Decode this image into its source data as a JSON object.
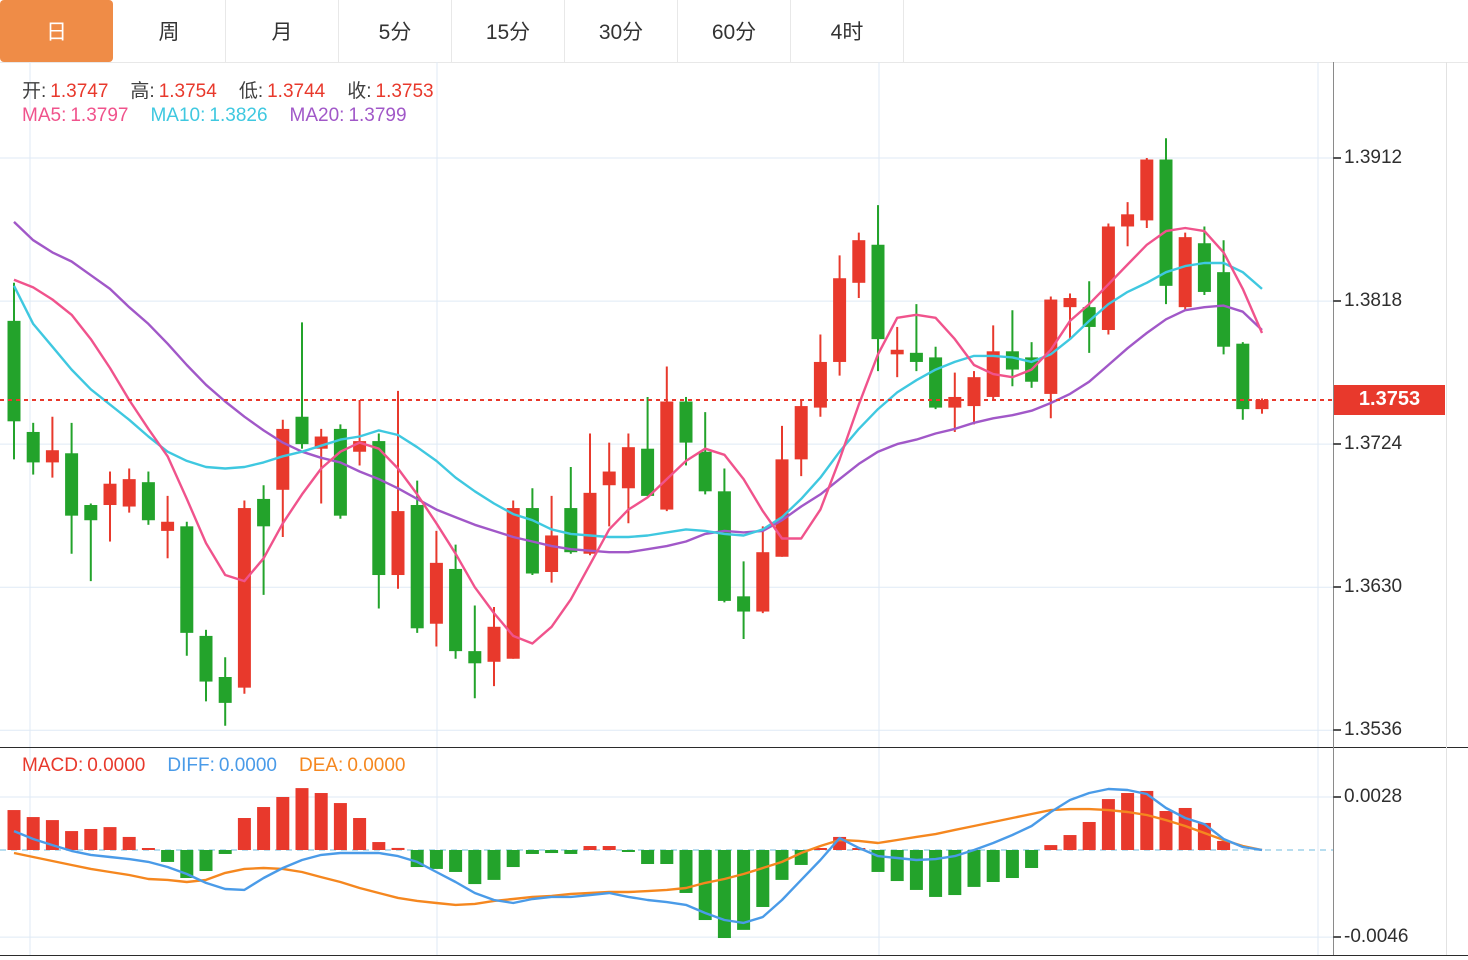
{
  "tabs": [
    {
      "label": "日",
      "active": true
    },
    {
      "label": "周",
      "active": false
    },
    {
      "label": "月",
      "active": false
    },
    {
      "label": "5分",
      "active": false
    },
    {
      "label": "15分",
      "active": false
    },
    {
      "label": "30分",
      "active": false
    },
    {
      "label": "60分",
      "active": false
    },
    {
      "label": "4时",
      "active": false
    }
  ],
  "price_tag": "1.3753",
  "legend": {
    "ohlc": [
      {
        "label": "开:",
        "value": "1.3747"
      },
      {
        "label": "高:",
        "value": "1.3754"
      },
      {
        "label": "低:",
        "value": "1.3744"
      },
      {
        "label": "收:",
        "value": "1.3753"
      }
    ],
    "ma": [
      {
        "label": "MA5:",
        "value": "1.3797",
        "color": "#f0538c"
      },
      {
        "label": "MA10:",
        "value": "1.3826",
        "color": "#3fc8e0"
      },
      {
        "label": "MA20:",
        "value": "1.3799",
        "color": "#a158c8"
      }
    ],
    "macd": [
      {
        "label": "MACD:",
        "value": "0.0000",
        "color": "#e8392c"
      },
      {
        "label": "DIFF:",
        "value": "0.0000",
        "color": "#4a9be8"
      },
      {
        "label": "DEA:",
        "value": "0.0000",
        "color": "#f5871f"
      }
    ]
  },
  "colors": {
    "up": "#e8392c",
    "down": "#23a32b",
    "ma5": "#f0538c",
    "ma10": "#3fc8e0",
    "ma20": "#a158c8",
    "diff": "#4a9be8",
    "dea": "#f5871f",
    "tab_active": "#ef8c47",
    "grid": "#dfeaf5",
    "zero_dash": "#9fd2ea",
    "ohlc_label": "#3f3f3f",
    "ohlc_value": "#e8392c",
    "dotted_price": "#e8392c"
  },
  "chart_data": {
    "type": "candlestick",
    "title": "",
    "legend_position": "top-left",
    "grid": true,
    "price_axis_ticks": [
      1.3912,
      1.3818,
      1.3724,
      1.363,
      1.3536
    ],
    "macd_axis_ticks": [
      0.0028,
      -0.0046
    ],
    "current_price": 1.3753,
    "candles_ohlc": [
      [
        1.3805,
        1.383,
        1.3714,
        1.3739
      ],
      [
        1.3732,
        1.3738,
        1.3704,
        1.3712
      ],
      [
        1.3712,
        1.3742,
        1.3702,
        1.372
      ],
      [
        1.3718,
        1.3738,
        1.3652,
        1.3677
      ],
      [
        1.3684,
        1.3685,
        1.3634,
        1.3674
      ],
      [
        1.3684,
        1.3706,
        1.366,
        1.3698
      ],
      [
        1.3683,
        1.3708,
        1.3679,
        1.3701
      ],
      [
        1.3699,
        1.3706,
        1.3671,
        1.3674
      ],
      [
        1.3667,
        1.369,
        1.3649,
        1.3673
      ],
      [
        1.367,
        1.3673,
        1.3585,
        1.36
      ],
      [
        1.3598,
        1.3602,
        1.3555,
        1.3568
      ],
      [
        1.3571,
        1.3584,
        1.3539,
        1.3554
      ],
      [
        1.3564,
        1.3687,
        1.356,
        1.3682
      ],
      [
        1.3688,
        1.3697,
        1.3625,
        1.367
      ],
      [
        1.3694,
        1.374,
        1.3663,
        1.3734
      ],
      [
        1.3742,
        1.3804,
        1.3721,
        1.3724
      ],
      [
        1.3721,
        1.3734,
        1.3685,
        1.3729
      ],
      [
        1.3734,
        1.3737,
        1.3675,
        1.3677
      ],
      [
        1.3719,
        1.3753,
        1.371,
        1.3726
      ],
      [
        1.3726,
        1.3731,
        1.3616,
        1.3638
      ],
      [
        1.3638,
        1.3759,
        1.3629,
        1.368
      ],
      [
        1.3684,
        1.37,
        1.36,
        1.3603
      ],
      [
        1.3606,
        1.3667,
        1.3591,
        1.3646
      ],
      [
        1.3642,
        1.3658,
        1.3583,
        1.3588
      ],
      [
        1.3588,
        1.3618,
        1.3557,
        1.358
      ],
      [
        1.3581,
        1.3617,
        1.3565,
        1.3604
      ],
      [
        1.3583,
        1.3687,
        1.3583,
        1.3682
      ],
      [
        1.3682,
        1.3695,
        1.3638,
        1.3639
      ],
      [
        1.364,
        1.369,
        1.3633,
        1.3664
      ],
      [
        1.3682,
        1.3709,
        1.3652,
        1.3653
      ],
      [
        1.3652,
        1.3731,
        1.3651,
        1.3692
      ],
      [
        1.3697,
        1.3725,
        1.367,
        1.3706
      ],
      [
        1.3695,
        1.3731,
        1.3672,
        1.3722
      ],
      [
        1.3721,
        1.3755,
        1.369,
        1.369
      ],
      [
        1.3681,
        1.3775,
        1.368,
        1.3752
      ],
      [
        1.3752,
        1.3755,
        1.371,
        1.3725
      ],
      [
        1.3719,
        1.3745,
        1.3691,
        1.3693
      ],
      [
        1.3693,
        1.3708,
        1.362,
        1.3621
      ],
      [
        1.3624,
        1.3647,
        1.3596,
        1.3614
      ],
      [
        1.3614,
        1.367,
        1.3613,
        1.3653
      ],
      [
        1.365,
        1.3736,
        1.365,
        1.3714
      ],
      [
        1.3714,
        1.3753,
        1.3703,
        1.3749
      ],
      [
        1.3748,
        1.3796,
        1.3742,
        1.3778
      ],
      [
        1.3778,
        1.3848,
        1.3769,
        1.3833
      ],
      [
        1.383,
        1.3863,
        1.382,
        1.3858
      ],
      [
        1.3855,
        1.3881,
        1.3772,
        1.3793
      ],
      [
        1.3783,
        1.3801,
        1.3768,
        1.3786
      ],
      [
        1.3784,
        1.3816,
        1.3772,
        1.3778
      ],
      [
        1.3781,
        1.3788,
        1.3747,
        1.3748
      ],
      [
        1.3748,
        1.3771,
        1.3732,
        1.3755
      ],
      [
        1.3749,
        1.3772,
        1.3737,
        1.3768
      ],
      [
        1.3755,
        1.3802,
        1.3753,
        1.3785
      ],
      [
        1.3785,
        1.3812,
        1.3762,
        1.3773
      ],
      [
        1.3781,
        1.3791,
        1.3761,
        1.3765
      ],
      [
        1.3757,
        1.3821,
        1.3741,
        1.3819
      ],
      [
        1.3814,
        1.3823,
        1.3793,
        1.382
      ],
      [
        1.3814,
        1.3831,
        1.3784,
        1.3801
      ],
      [
        1.3799,
        1.3869,
        1.3796,
        1.3867
      ],
      [
        1.3867,
        1.3883,
        1.3854,
        1.3875
      ],
      [
        1.3871,
        1.3912,
        1.3866,
        1.3911
      ],
      [
        1.3911,
        1.3925,
        1.3816,
        1.3828
      ],
      [
        1.3814,
        1.3863,
        1.3812,
        1.386
      ],
      [
        1.3856,
        1.3867,
        1.3822,
        1.3824
      ],
      [
        1.3837,
        1.3858,
        1.3783,
        1.3788
      ],
      [
        1.379,
        1.3791,
        1.374,
        1.3747
      ],
      [
        1.3747,
        1.3754,
        1.3744,
        1.3753
      ]
    ],
    "ma5": [
      1.3832,
      1.3827,
      1.3819,
      1.3809,
      1.3793,
      1.3774,
      1.3753,
      1.3734,
      1.3716,
      1.3688,
      1.3659,
      1.3638,
      1.3634,
      1.3649,
      1.3672,
      1.3691,
      1.3708,
      1.3719,
      1.3725,
      1.3721,
      1.3708,
      1.3691,
      1.3672,
      1.3652,
      1.363,
      1.3613,
      1.3598,
      1.3593,
      1.3604,
      1.3622,
      1.3645,
      1.3668,
      1.3681,
      1.3689,
      1.3701,
      1.3713,
      1.3721,
      1.3717,
      1.3701,
      1.368,
      1.3662,
      1.3662,
      1.3681,
      1.3714,
      1.375,
      1.3783,
      1.3807,
      1.3809,
      1.3807,
      1.3793,
      1.3776,
      1.377,
      1.3768,
      1.3773,
      1.3786,
      1.3805,
      1.3816,
      1.3829,
      1.3842,
      1.3855,
      1.3864,
      1.3866,
      1.3864,
      1.385,
      1.3826,
      1.3797
    ],
    "ma10": [
      1.3828,
      1.3803,
      1.3788,
      1.3773,
      1.376,
      1.375,
      1.374,
      1.3729,
      1.3719,
      1.3713,
      1.3709,
      1.3708,
      1.3709,
      1.3712,
      1.3716,
      1.3719,
      1.3723,
      1.3727,
      1.3729,
      1.3733,
      1.373,
      1.3722,
      1.3713,
      1.3702,
      1.3693,
      1.3685,
      1.3678,
      1.3674,
      1.3668,
      1.3665,
      1.3664,
      1.3663,
      1.3663,
      1.3664,
      1.3666,
      1.3668,
      1.3667,
      1.3665,
      1.3664,
      1.3668,
      1.3676,
      1.3688,
      1.3702,
      1.3719,
      1.3734,
      1.3747,
      1.3758,
      1.3766,
      1.3773,
      1.3778,
      1.3782,
      1.3782,
      1.3781,
      1.3778,
      1.3783,
      1.3793,
      1.3805,
      1.3816,
      1.3824,
      1.383,
      1.3837,
      1.3841,
      1.3843,
      1.3843,
      1.3837,
      1.3826
    ],
    "ma20": [
      1.387,
      1.3858,
      1.385,
      1.3844,
      1.3835,
      1.3826,
      1.3814,
      1.3803,
      1.379,
      1.3776,
      1.3763,
      1.3752,
      1.3742,
      1.3733,
      1.3725,
      1.3719,
      1.3715,
      1.3712,
      1.3706,
      1.3701,
      1.3695,
      1.3688,
      1.3681,
      1.3676,
      1.3671,
      1.3667,
      1.3663,
      1.366,
      1.3657,
      1.3655,
      1.3654,
      1.3653,
      1.3653,
      1.3655,
      1.3657,
      1.366,
      1.3665,
      1.3667,
      1.3666,
      1.3667,
      1.3674,
      1.3683,
      1.3691,
      1.3701,
      1.3711,
      1.3719,
      1.3724,
      1.3727,
      1.3731,
      1.3734,
      1.3738,
      1.3741,
      1.3743,
      1.3746,
      1.3751,
      1.3757,
      1.3765,
      1.3776,
      1.3787,
      1.3797,
      1.3806,
      1.3812,
      1.3814,
      1.3815,
      1.3811,
      1.3799
    ],
    "macd_hist": [
      0.00211,
      0.00174,
      0.00158,
      0.001,
      0.00111,
      0.00121,
      0.00069,
      5e-05,
      -0.00063,
      -0.00148,
      -0.00111,
      -0.00021,
      0.00169,
      0.00227,
      0.0028,
      0.00327,
      0.00301,
      0.00248,
      0.00169,
      0.00042,
      0.00011,
      -0.0009,
      -0.001,
      -0.00116,
      -0.0018,
      -0.00158,
      -0.0009,
      -0.00021,
      -0.00016,
      -0.00021,
      0.00021,
      0.00021,
      -5e-05,
      -0.00074,
      -0.00074,
      -0.00227,
      -0.0037,
      -0.00465,
      -0.00422,
      -0.00301,
      -0.00158,
      -0.00079,
      5e-05,
      0.00069,
      5e-05,
      -0.00116,
      -0.00164,
      -0.00211,
      -0.00248,
      -0.00238,
      -0.00195,
      -0.00169,
      -0.00148,
      -0.00095,
      0.00026,
      0.00079,
      0.00148,
      0.00269,
      0.00301,
      0.00312,
      0.00206,
      0.00222,
      0.00143,
      0.00048,
      0,
      0
    ],
    "diff": [
      0.001,
      0.00058,
      0.00026,
      -5e-05,
      -0.00026,
      -0.00037,
      -0.00048,
      -0.00063,
      -0.0009,
      -0.00127,
      -0.00174,
      -0.00206,
      -0.00211,
      -0.00148,
      -0.00095,
      -0.00053,
      -0.00026,
      -0.00016,
      -0.00016,
      -0.00016,
      -0.00032,
      -0.00063,
      -0.00116,
      -0.00169,
      -0.00227,
      -0.00264,
      -0.0028,
      -0.00259,
      -0.00248,
      -0.00248,
      -0.00238,
      -0.00227,
      -0.00248,
      -0.00264,
      -0.00275,
      -0.0029,
      -0.00333,
      -0.0037,
      -0.00385,
      -0.00354,
      -0.00264,
      -0.00158,
      -0.00053,
      0.00063,
      0.00011,
      -0.00032,
      -0.00042,
      -0.00053,
      -0.00048,
      -0.00032,
      0.0,
      0.00037,
      0.00079,
      0.00127,
      0.00201,
      0.00264,
      0.00301,
      0.00322,
      0.00317,
      0.00296,
      0.00222,
      0.00169,
      0.00137,
      0.00058,
      0.00016,
      0.0
    ],
    "dea": [
      -0.00016,
      -0.00037,
      -0.00058,
      -0.00079,
      -0.001,
      -0.00116,
      -0.00132,
      -0.00153,
      -0.00158,
      -0.00169,
      -0.00158,
      -0.00121,
      -0.001,
      -0.00095,
      -0.001,
      -0.00116,
      -0.00143,
      -0.00169,
      -0.00201,
      -0.00227,
      -0.00253,
      -0.00269,
      -0.0028,
      -0.0029,
      -0.00285,
      -0.00269,
      -0.00259,
      -0.00248,
      -0.00243,
      -0.00232,
      -0.00227,
      -0.00222,
      -0.00222,
      -0.00217,
      -0.00211,
      -0.00201,
      -0.00174,
      -0.00153,
      -0.00127,
      -0.00095,
      -0.00063,
      -0.00016,
      0.00021,
      0.00053,
      0.00048,
      0.00037,
      0.00053,
      0.00069,
      0.00084,
      0.00106,
      0.00127,
      0.00148,
      0.00169,
      0.0019,
      0.00211,
      0.00216,
      0.00216,
      0.00211,
      0.00201,
      0.00185,
      0.00158,
      0.00127,
      0.0009,
      0.00053,
      0.00021,
      0.0
    ]
  }
}
